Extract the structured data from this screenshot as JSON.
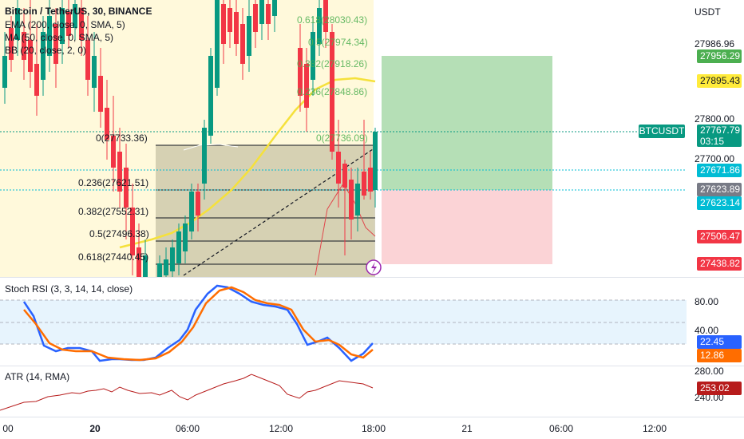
{
  "legend": {
    "title": "Bitcoin / TetherUS, 30, BINANCE",
    "ema": "EMA (200, close, 0, SMA, 5)",
    "ma": "MA (50, close, 0, SMA, 5)",
    "bb": "BB (20, close, 2, 0)"
  },
  "price_axis": {
    "currency": "USDT",
    "ticks": [
      "27986.96",
      "27800.00",
      "27700.00"
    ],
    "tags": [
      {
        "name": "target-price",
        "value": "27956.29",
        "color": "#4caf50"
      },
      {
        "name": "ema-price",
        "value": "27895.43",
        "color": "#ffeb3b"
      },
      {
        "name": "current-price",
        "value": "27767.79",
        "color": "#089981"
      },
      {
        "name": "timer",
        "value": "03:15",
        "color": "#089981"
      },
      {
        "name": "line-price-1",
        "value": "27671.86",
        "color": "#00bcd4"
      },
      {
        "name": "entry-price",
        "value": "27623.89",
        "color": "#787b86"
      },
      {
        "name": "line-price-2",
        "value": "27623.14",
        "color": "#00bcd4"
      },
      {
        "name": "bb-low-price",
        "value": "27506.47",
        "color": "#f23645"
      },
      {
        "name": "stop-price",
        "value": "27438.82",
        "color": "#f23645"
      }
    ],
    "symbol_tag": "BTCUSDT"
  },
  "fib_lower": [
    "0(27733.36)",
    "0.236(27621.51)",
    "0.382(27552.31)",
    "0.5(27496.38)",
    "0.618(27440.45)"
  ],
  "fib_upper": [
    "0.618(28030.43)",
    "0.5(27974.34)",
    "0.382(27918.26)",
    "0.236(27848.86)",
    "0(27736.09)"
  ],
  "stoch_rsi": {
    "legend": "Stoch RSI (3, 3, 14, 14, close)",
    "ticks": [
      "80.00",
      "40.00"
    ],
    "k_value": "22.45",
    "d_value": "12.86",
    "k_color": "#2962ff",
    "d_color": "#ff6d00"
  },
  "atr": {
    "legend": "ATR (14, RMA)",
    "ticks": [
      "280.00",
      "240.00"
    ],
    "value": "253.02",
    "color": "#b71c1c"
  },
  "time_axis": [
    "00",
    "20",
    "06:00",
    "12:00",
    "18:00",
    "21",
    "06:00",
    "12:00"
  ]
}
